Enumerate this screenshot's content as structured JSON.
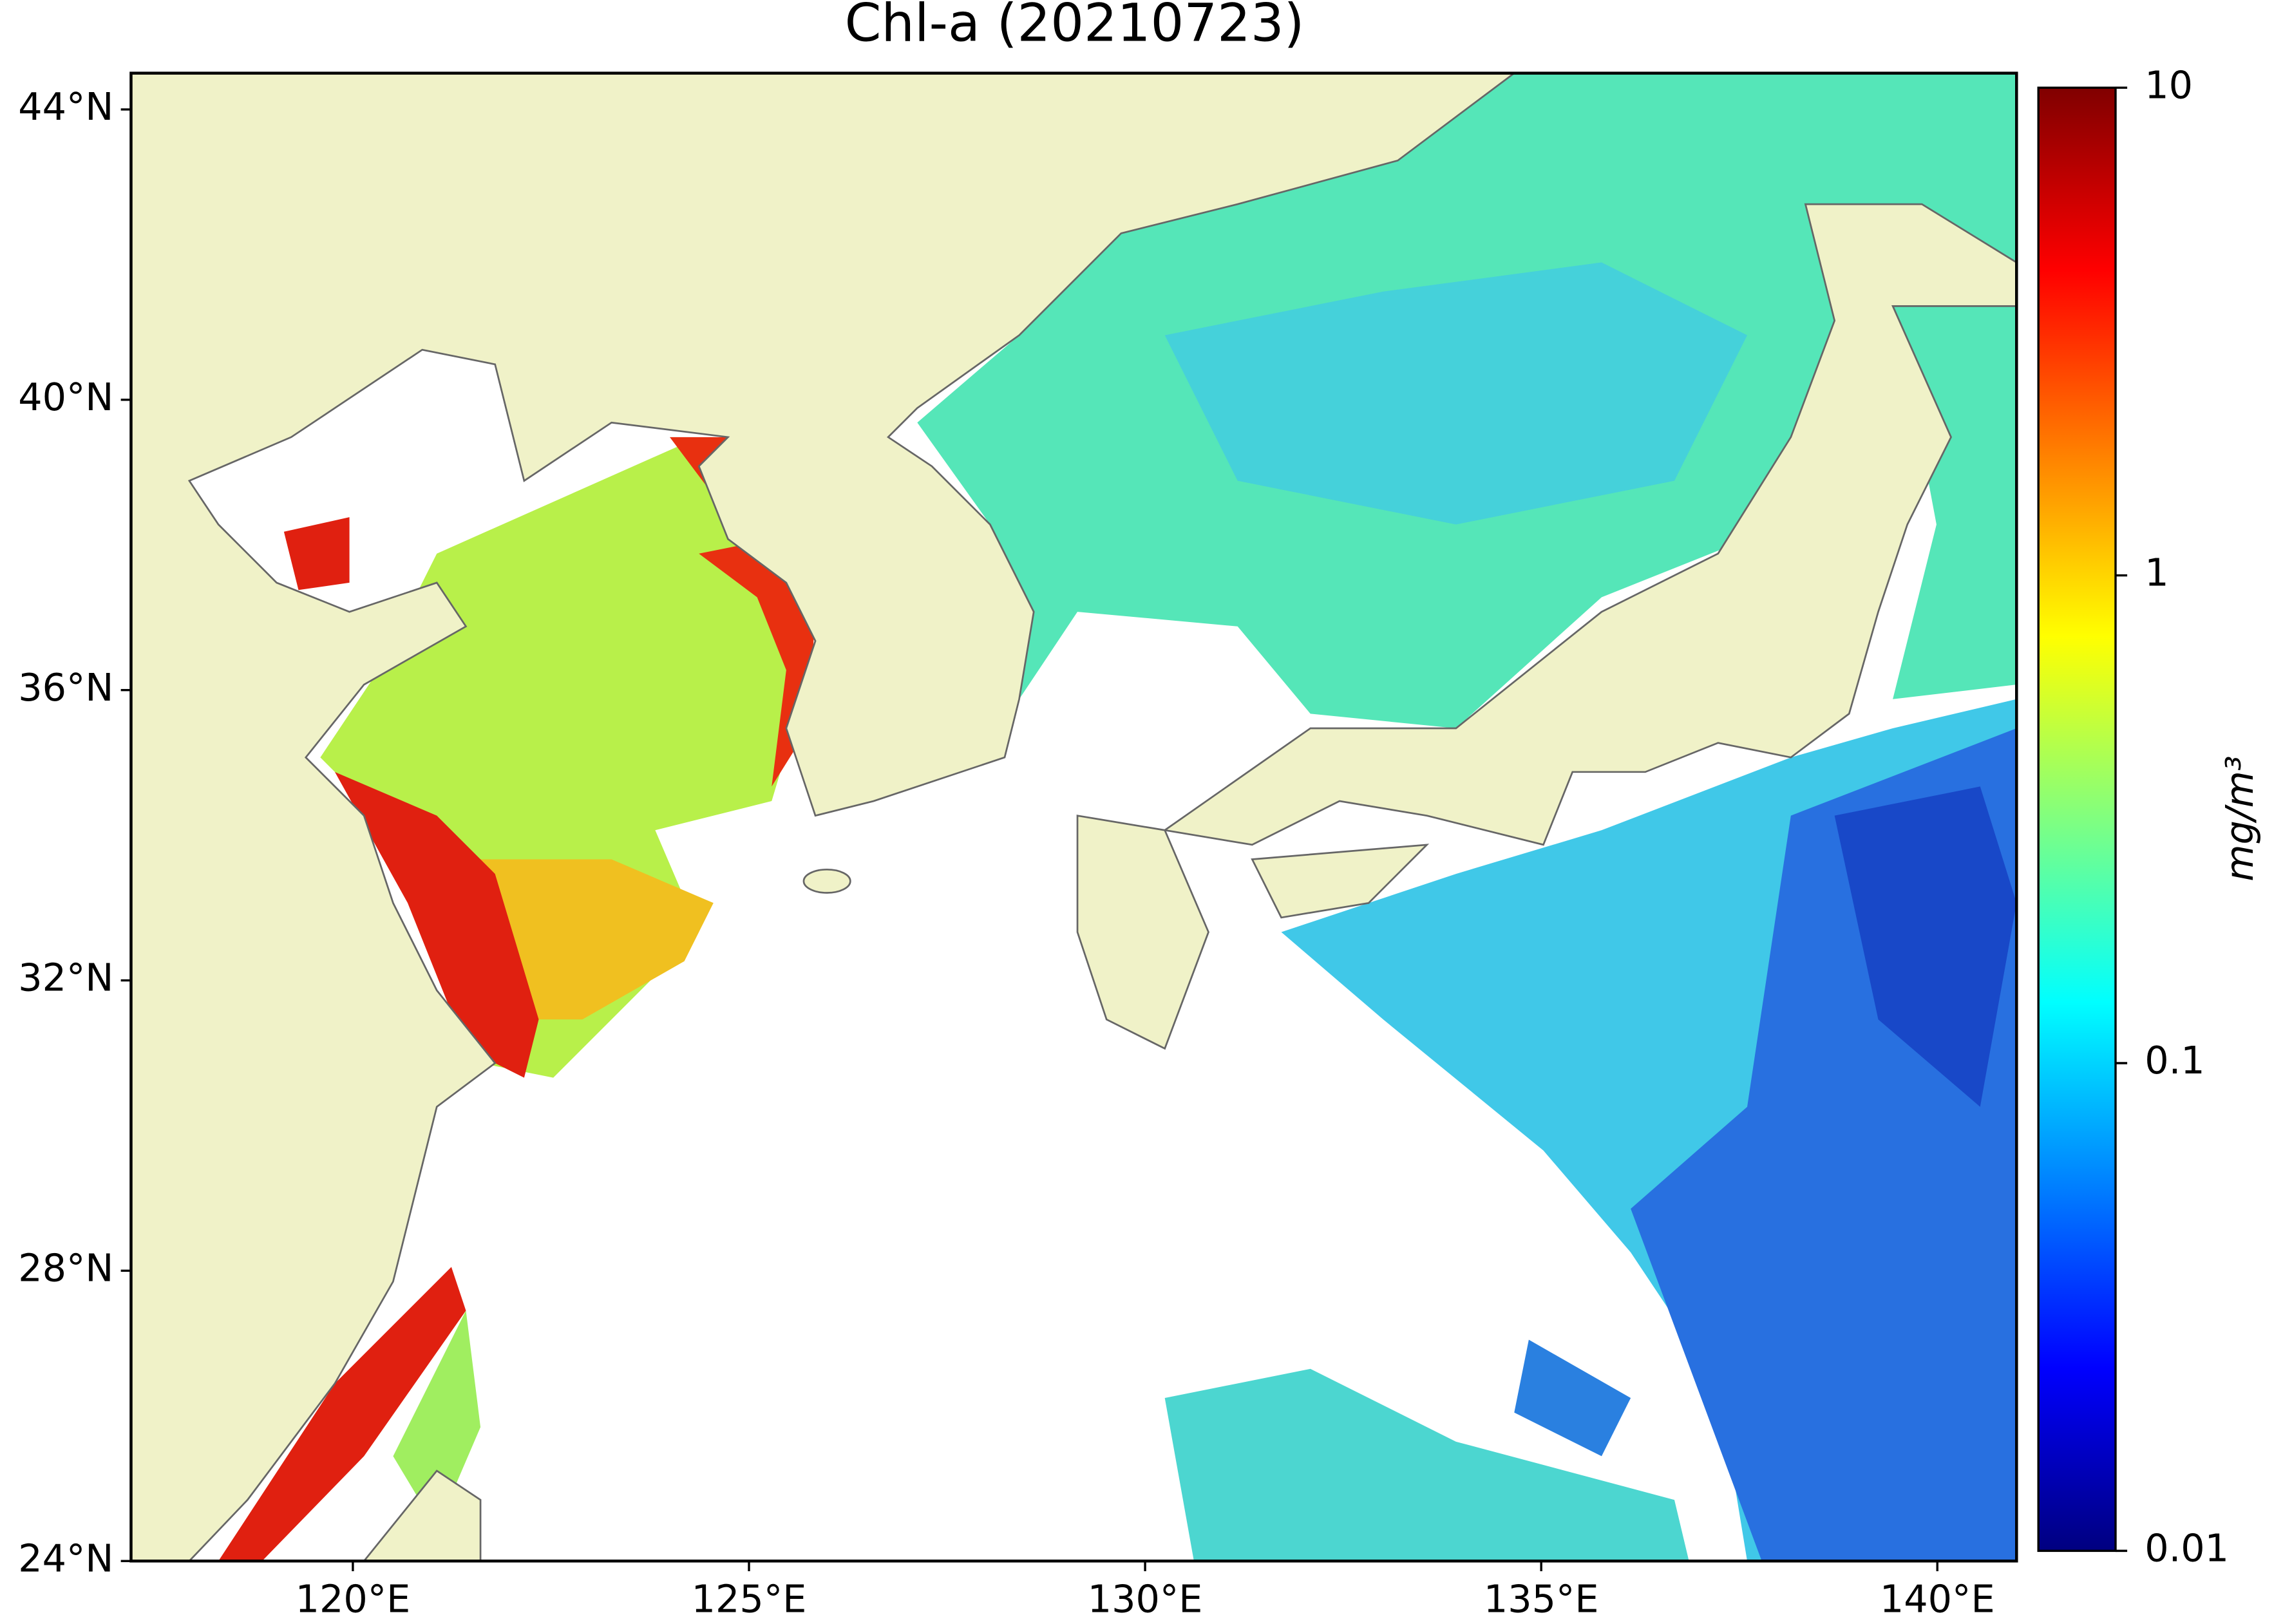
{
  "chart_data": {
    "type": "map",
    "title": "Chl-a (20210723)",
    "xlim": [
      117.2,
      141
    ],
    "ylim": [
      24,
      44.5
    ],
    "xticks": [
      {
        "value": 120,
        "label": "120°E"
      },
      {
        "value": 125,
        "label": "125°E"
      },
      {
        "value": 130,
        "label": "130°E"
      },
      {
        "value": 135,
        "label": "135°E"
      },
      {
        "value": 140,
        "label": "140°E"
      }
    ],
    "yticks": [
      {
        "value": 24,
        "label": "24°N"
      },
      {
        "value": 28,
        "label": "28°N"
      },
      {
        "value": 32,
        "label": "32°N"
      },
      {
        "value": 36,
        "label": "36°N"
      },
      {
        "value": 40,
        "label": "40°N"
      },
      {
        "value": 44,
        "label": "44°N"
      }
    ],
    "colorbar": {
      "label": "mg/m³",
      "scale": "log",
      "lim": [
        0.01,
        10
      ],
      "ticks": [
        0.01,
        0.1,
        1,
        10
      ],
      "cmap": "jet"
    },
    "land_color": "#f0f2c8"
  }
}
